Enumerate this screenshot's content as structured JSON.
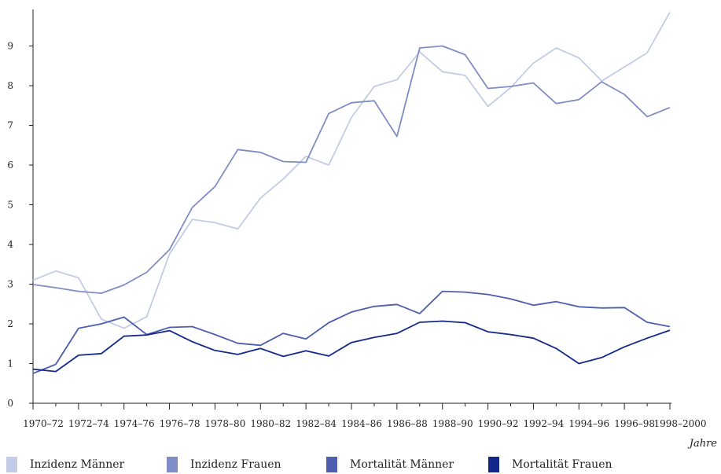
{
  "chart_data": {
    "type": "line",
    "x_tick_labels": [
      "1970–72",
      "1972–74",
      "1974–76",
      "1976–78",
      "1978–80",
      "1980–82",
      "1982–84",
      "1984–86",
      "1986–88",
      "1988–90",
      "1990–92",
      "1992–94",
      "1994–96",
      "1996–98",
      "1998–2000"
    ],
    "x": [
      1970,
      1971,
      1972,
      1973,
      1974,
      1975,
      1976,
      1977,
      1978,
      1979,
      1980,
      1981,
      1982,
      1983,
      1984,
      1985,
      1986,
      1987,
      1988,
      1989,
      1990,
      1991,
      1992,
      1993,
      1994,
      1995,
      1996,
      1997,
      1998
    ],
    "xlim": [
      1970,
      1998
    ],
    "ylim": [
      0,
      9.8
    ],
    "yticks": [
      0,
      1,
      2,
      3,
      4,
      5,
      6,
      7,
      8,
      9
    ],
    "xlabel": "Jahre",
    "ylabel": "",
    "grid": false,
    "legend_position": "bottom",
    "series": [
      {
        "name": "Inzidenz Männer",
        "color": "#c3cce6",
        "values": [
          3.1,
          3.33,
          3.16,
          2.12,
          1.89,
          2.18,
          3.76,
          4.63,
          4.55,
          4.39,
          5.17,
          5.65,
          6.22,
          6.0,
          7.2,
          7.98,
          8.15,
          8.85,
          8.35,
          8.26,
          7.48,
          7.95,
          8.57,
          8.95,
          8.7,
          8.12,
          8.47,
          8.83,
          9.85
        ]
      },
      {
        "name": "Inzidenz Frauen",
        "color": "#7f8dc4",
        "values": [
          2.99,
          2.91,
          2.82,
          2.77,
          2.98,
          3.3,
          3.87,
          4.93,
          5.46,
          6.39,
          6.32,
          6.09,
          6.07,
          7.3,
          7.57,
          7.62,
          6.72,
          8.95,
          9.0,
          8.78,
          7.93,
          7.98,
          8.07,
          7.55,
          7.65,
          8.1,
          7.78,
          7.22,
          7.45
        ]
      },
      {
        "name": "Mortalität Männer",
        "color": "#4d5eaf",
        "values": [
          0.75,
          0.98,
          1.89,
          2.0,
          2.17,
          1.73,
          1.91,
          1.93,
          1.73,
          1.51,
          1.46,
          1.76,
          1.62,
          2.03,
          2.3,
          2.44,
          2.49,
          2.26,
          2.82,
          2.8,
          2.74,
          2.63,
          2.47,
          2.56,
          2.43,
          2.4,
          2.41,
          2.04,
          1.93
        ]
      },
      {
        "name": "Mortalität Frauen",
        "color": "#14288a",
        "values": [
          0.86,
          0.8,
          1.21,
          1.25,
          1.69,
          1.72,
          1.83,
          1.55,
          1.33,
          1.23,
          1.38,
          1.18,
          1.32,
          1.19,
          1.53,
          1.66,
          1.76,
          2.04,
          2.07,
          2.03,
          1.8,
          1.73,
          1.64,
          1.38,
          1.0,
          1.15,
          1.42,
          1.64,
          1.84
        ]
      }
    ]
  }
}
